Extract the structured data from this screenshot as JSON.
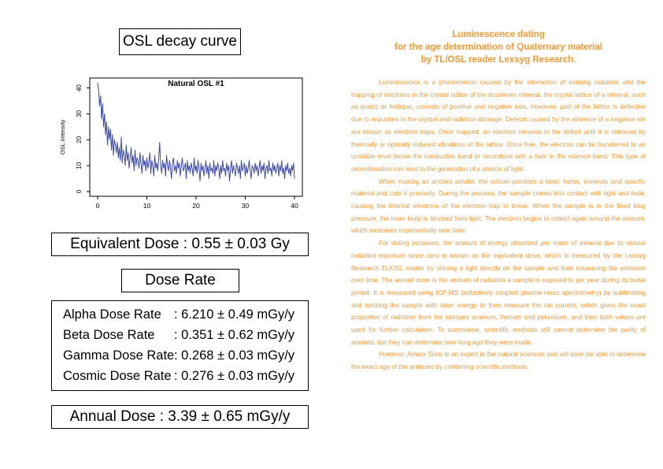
{
  "left": {
    "osl_title": "OSL decay curve",
    "equivalent_dose": "Equivalent Dose : 0.55 ± 0.03 Gy",
    "dose_rate_title": "Dose Rate",
    "dose_rates": [
      {
        "label": "Alpha Dose Rate",
        "value": ": 6.210 ± 0.49 mGy/y"
      },
      {
        "label": "Beta Dose Rate",
        "value": ": 0.351 ± 0.62 mGy/y"
      },
      {
        "label": "Gamma Dose Rate",
        "value": ": 0.268 ± 0.03 mGy/y"
      },
      {
        "label": "Cosmic Dose Rate",
        "value": ": 0.276 ± 0.03 mGy/y"
      }
    ],
    "annual_dose": "Annual Dose : 3.39 ± 0.65 mGy/y"
  },
  "right": {
    "heading_lines": [
      "Luminescence dating",
      "for the age determination of Quaternary material",
      "by TL/OSL reader Lexsyg Research."
    ],
    "paragraphs": [
      "Luminescence is a phenomenon caused by the interaction of ionising radiation and the trapping of electrons in the crystal lattice of the dosimeter mineral. the crystal lattice of a mineral, such as quartz or feldspar, consists of positive and negative ions. However, part of the lattice is defective due to impurities in the crystal and radiation damage. Defects caused by the absence of a negative ion are known as electron traps. Once trapped, an electron remains in the defect until it is released by thermally or optically induced vibrations of the lattice. Once free, the electron can be transferred to an unstable level below the conduction band or recombine with a hole in the valence band. This type of recombination can lead to the generation of a photon of light.",
      "When making an ancient amulet, the artisan provides a bowl, herbs, minerals and specific material and cuts it precisely. During the process, the sample comes into contact with light and heat, causing the internal electrons of the electron trap to break. When the sample is in the fixed blog pressure, the inner body is blocked from light. The electron begins to collect again around the amount, which increases exponentially over time.",
      "For dating purposes, the amount of energy absorbed per mass of mineral due to natural radiation exposure since zero is known as the equivalent dose, which is measured by the Lexsyg Research TL/OSL reader by shining a light directly on the sample and then measuring the emission over time. The annual dose is the amount of radiation a sample is exposed to per year during its burial period. It is measured using ICP-MS (inductively coupled plasma mass spectrometry) by sublimating and ionizing the sample with laser energy to then measure the ion current, which gives the exact proportion of radiation from the isotopes uranium, thorium and potassium, and then both values are used for further calculation. To summarise, scientific methods still cannot determine the purity of amulets, but they can determine how long ago they were made.",
      "However, Amata Siam is an expert in the natural sciences and will soon be able to determine the exact age of the antiques by combining scientific methods."
    ]
  },
  "colors": {
    "accent": "#f29a32",
    "line": "#3c4aa8"
  },
  "chart_data": {
    "type": "line",
    "title": "Natural OSL #1",
    "xlabel": "",
    "ylabel": "OSL intensity",
    "xlim": [
      0,
      40
    ],
    "ylim": [
      0,
      42
    ],
    "xticks": [
      0,
      10,
      20,
      30,
      40
    ],
    "yticks": [
      0,
      10,
      20,
      30,
      40
    ],
    "grid": false,
    "series": [
      {
        "x": [
          0,
          0.2,
          0.4,
          0.6,
          0.8,
          1.0,
          1.2,
          1.4,
          1.6,
          1.8,
          2.0,
          2.2,
          2.4,
          2.6,
          2.8,
          3.0,
          3.2,
          3.4,
          3.6,
          3.8,
          4.0,
          4.2,
          4.4,
          4.6,
          4.8,
          5.0,
          5.2,
          5.4,
          5.6,
          5.8,
          6.0,
          6.2,
          6.4,
          6.6,
          6.8,
          7.0,
          7.2,
          7.4,
          7.6,
          7.8,
          8.0,
          8.2,
          8.4,
          8.6,
          8.8,
          9.0,
          9.2,
          9.4,
          9.6,
          9.8,
          10.0,
          10.2,
          10.4,
          10.6,
          10.8,
          11.0,
          11.2,
          11.4,
          11.6,
          11.8,
          12.0,
          12.2,
          12.4,
          12.6,
          12.8,
          13.0,
          13.2,
          13.4,
          13.6,
          13.8,
          14.0,
          14.2,
          14.4,
          14.6,
          14.8,
          15.0,
          15.2,
          15.4,
          15.6,
          15.8,
          16.0,
          16.2,
          16.4,
          16.6,
          16.8,
          17.0,
          17.2,
          17.4,
          17.6,
          17.8,
          18.0,
          18.2,
          18.4,
          18.6,
          18.8,
          19.0,
          19.2,
          19.4,
          19.6,
          19.8,
          20.0,
          20.2,
          20.4,
          20.6,
          20.8,
          21.0,
          21.2,
          21.4,
          21.6,
          21.8,
          22.0,
          22.2,
          22.4,
          22.6,
          22.8,
          23.0,
          23.2,
          23.4,
          23.6,
          23.8,
          24.0,
          24.2,
          24.4,
          24.6,
          24.8,
          25.0,
          25.2,
          25.4,
          25.6,
          25.8,
          26.0,
          26.2,
          26.4,
          26.6,
          26.8,
          27.0,
          27.2,
          27.4,
          27.6,
          27.8,
          28.0,
          28.2,
          28.4,
          28.6,
          28.8,
          29.0,
          29.2,
          29.4,
          29.6,
          29.8,
          30.0,
          30.2,
          30.4,
          30.6,
          30.8,
          31.0,
          31.2,
          31.4,
          31.6,
          31.8,
          32.0,
          32.2,
          32.4,
          32.6,
          32.8,
          33.0,
          33.2,
          33.4,
          33.6,
          33.8,
          34.0,
          34.2,
          34.4,
          34.6,
          34.8,
          35.0,
          35.2,
          35.4,
          35.6,
          35.8,
          36.0,
          36.2,
          36.4,
          36.6,
          36.8,
          37.0,
          37.2,
          37.4,
          37.6,
          37.8,
          38.0,
          38.2,
          38.4,
          38.6,
          38.8,
          39.0,
          39.2,
          39.4,
          39.6,
          39.8,
          40.0
        ],
        "y": [
          42,
          39,
          33,
          37,
          28,
          34,
          25,
          30,
          22,
          27,
          18,
          25,
          20,
          24,
          16,
          22,
          14,
          20,
          18,
          15,
          19,
          13,
          17,
          12,
          21,
          11,
          16,
          14,
          10,
          18,
          12,
          15,
          9,
          13,
          17,
          11,
          14,
          8,
          16,
          10,
          13,
          12,
          9,
          15,
          11,
          7,
          14,
          10,
          12,
          8,
          13,
          9,
          11,
          15,
          7,
          12,
          10,
          6,
          14,
          9,
          11,
          8,
          13,
          19,
          10,
          7,
          12,
          9,
          11,
          6,
          14,
          10,
          8,
          12,
          9,
          5,
          11,
          13,
          8,
          10,
          7,
          12,
          9,
          11,
          6,
          10,
          13,
          8,
          9,
          11,
          5,
          12,
          8,
          10,
          7,
          11,
          9,
          6,
          13,
          8,
          10,
          7,
          12,
          9,
          4,
          11,
          8,
          10,
          6,
          9,
          12,
          7,
          10,
          5,
          11,
          8,
          9,
          7,
          12,
          6,
          10,
          8,
          11,
          9,
          5,
          10,
          7,
          12,
          8,
          9,
          6,
          11,
          8,
          10,
          4,
          9,
          12,
          7,
          10,
          8,
          6,
          11,
          9,
          7,
          10,
          5,
          12,
          8,
          9,
          11,
          6,
          10,
          7,
          9,
          12,
          8,
          5,
          10,
          9,
          7,
          11,
          8,
          10,
          6,
          9,
          12,
          7,
          10,
          8,
          11,
          5,
          9,
          10,
          7,
          12,
          8,
          9,
          6,
          11,
          8,
          10,
          7,
          9,
          11,
          6,
          10,
          8,
          12,
          7,
          9,
          5,
          10,
          8,
          11,
          7,
          9,
          6,
          10,
          8,
          11,
          5
        ]
      }
    ]
  }
}
